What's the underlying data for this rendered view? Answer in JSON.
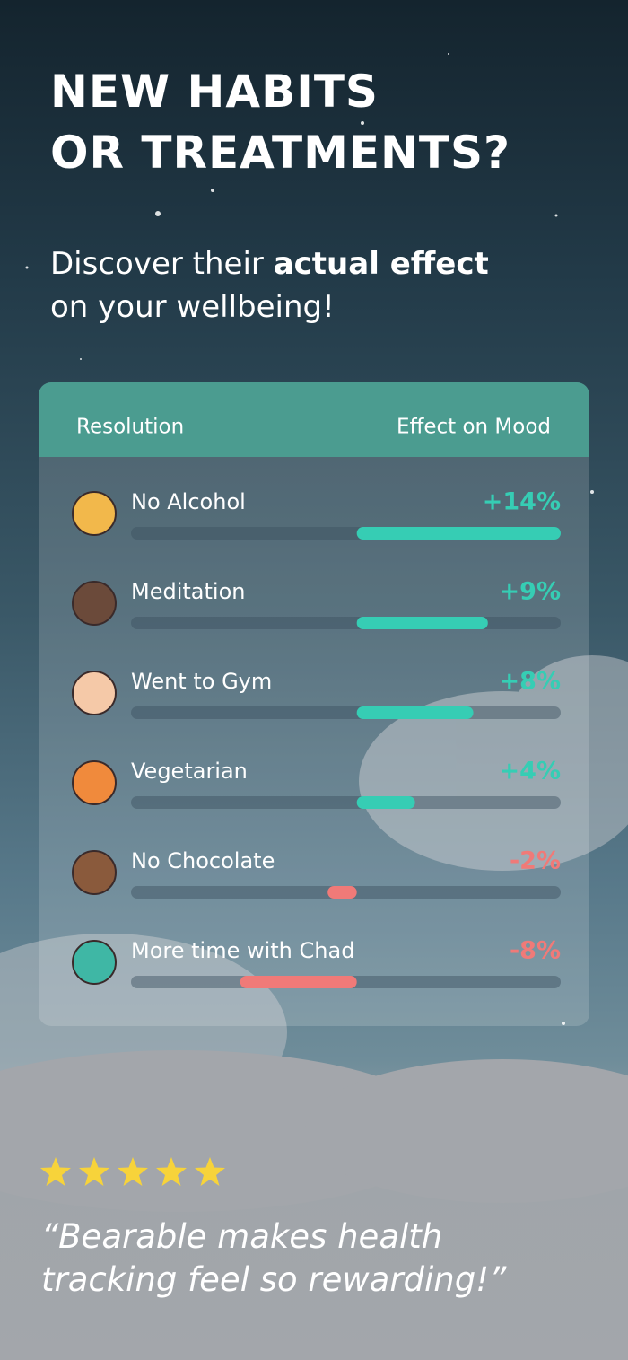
{
  "header": {
    "title_lines": [
      "NEW HABITS",
      "OR TREATMENTS?"
    ],
    "subtitle": {
      "start": "Discover their",
      "bold": "actual effect",
      "end": "on your wellbeing!"
    }
  },
  "table": {
    "columns": [
      "Resolution",
      "Effect on Mood"
    ],
    "xlim": [
      -15.5,
      14
    ],
    "positive_color": "#36cdb4",
    "negative_color": "#f07a78",
    "rows": [
      {
        "label": "No Alcohol",
        "value": 14,
        "value_label": "+14%"
      },
      {
        "label": "Meditation",
        "value": 9,
        "value_label": "+9%"
      },
      {
        "label": "Went to Gym",
        "value": 8,
        "value_label": "+8%"
      },
      {
        "label": "Vegetarian",
        "value": 4,
        "value_label": "+4%"
      },
      {
        "label": "No Chocolate",
        "value": -2,
        "value_label": "-2%"
      },
      {
        "label": "More time with Chad",
        "value": -8,
        "value_label": "-8%"
      }
    ]
  },
  "review": {
    "quote_lines": [
      "“Bearable makes health",
      "tracking feel so rewarding!”"
    ]
  }
}
